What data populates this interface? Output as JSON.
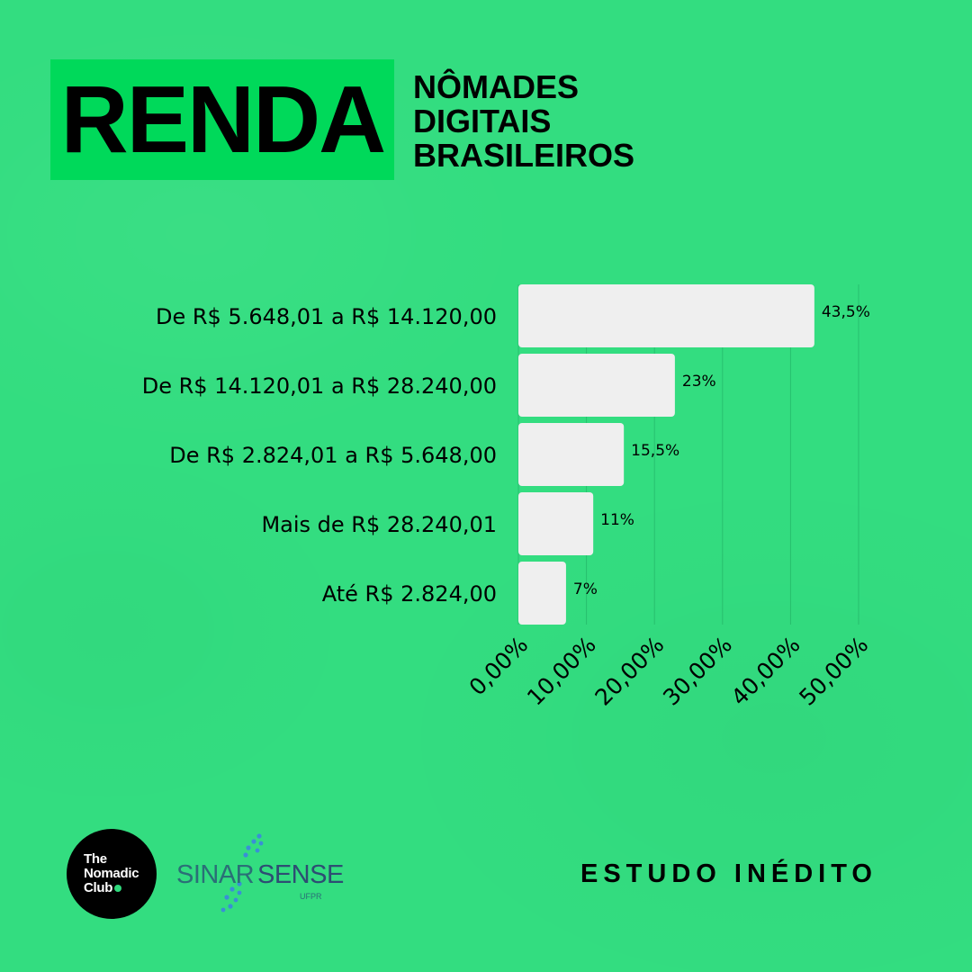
{
  "header": {
    "title": "RENDA",
    "subtitle_lines": [
      "NÔMADES",
      "DIGITAIS",
      "BRASILEIROS"
    ]
  },
  "colors": {
    "background": "#33dd80",
    "title_box": "#00d95a",
    "bar": "#efefef",
    "text": "#000000"
  },
  "chart_data": {
    "type": "bar",
    "orientation": "horizontal",
    "categories": [
      "De R$ 5.648,01 a R$ 14.120,00",
      "De R$ 14.120,01 a R$ 28.240,00",
      "De R$ 2.824,01 a R$ 5.648,00",
      "Mais de R$ 28.240,01",
      "Até R$ 2.824,00"
    ],
    "values": [
      43.5,
      23,
      15.5,
      11,
      7
    ],
    "data_labels": [
      "43,5%",
      "23%",
      "15,5%",
      "11%",
      "7%"
    ],
    "xlim": [
      0,
      50
    ],
    "x_ticks": [
      0,
      10,
      20,
      30,
      40,
      50
    ],
    "x_tick_labels": [
      "0,00%",
      "10,00%",
      "20,00%",
      "30,00%",
      "40,00%",
      "50,00%"
    ],
    "grid": "vertical",
    "legend": "none"
  },
  "footer": {
    "study_label": "ESTUDO INÉDITO",
    "logo_nomadic_lines": [
      "The",
      "Nomadic",
      "Club"
    ],
    "logo_sinar_word1": "SINAR",
    "logo_sinar_word2": "SENSE",
    "logo_sinar_sub": "UFPR",
    "logo_icon_names": [
      "nomadic-club-logo",
      "sinarsense-logo"
    ]
  }
}
